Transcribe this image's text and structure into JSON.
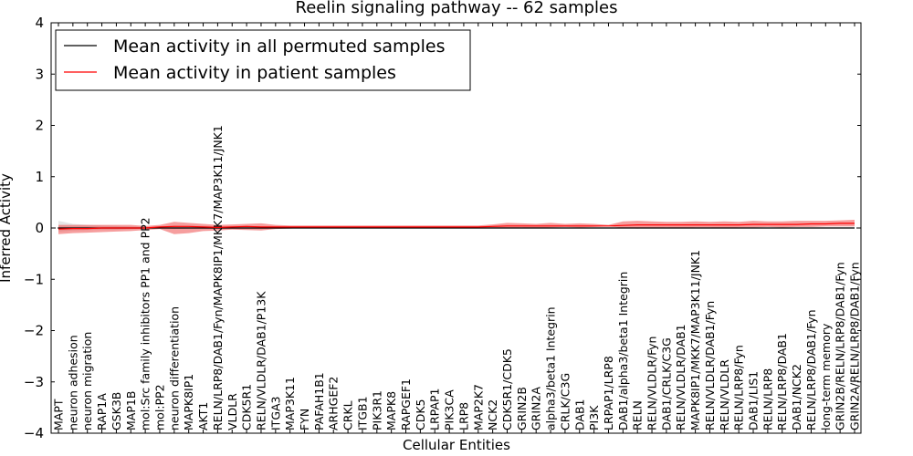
{
  "chart_data": {
    "type": "line",
    "title": "Reelin signaling pathway -- 62 samples",
    "xlabel": "Cellular Entities",
    "ylabel": "Inferred Activity",
    "ylim": [
      -4,
      4
    ],
    "yticks": [
      -4,
      -3,
      -2,
      -1,
      0,
      1,
      2,
      3,
      4
    ],
    "ytick_labels": [
      "−4",
      "−3",
      "−2",
      "−1",
      "0",
      "1",
      "2",
      "3",
      "4"
    ],
    "legend_position": "top-left",
    "zero_line": true,
    "categories": [
      "MAPT",
      "neuron adhesion",
      "neuron migration",
      "RAP1A",
      "GSK3B",
      "MAP1B",
      "mol:Src family inhibitors PP1 and PP2",
      "mol:PP2",
      "neuron differentiation",
      "MAPK8IP1",
      "AKT1",
      "RELN/LRP8/DAB1/Fyn/MAPK8IP1/MKK7/MAP3K11/JNK1",
      "VLDLR",
      "CDK5R1",
      "RELN/VLDLR/DAB1/P13K",
      "ITGA3",
      "MAP3K11",
      "FYN",
      "PAFAH1B1",
      "ARHGEF2",
      "CRKL",
      "ITGB1",
      "PIK3R1",
      "MAPK8",
      "RAPGEF1",
      "CDK5",
      "LRPAP1",
      "PIK3CA",
      "LRP8",
      "MAP2K7",
      "NCK2",
      "CDK5R1/CDK5",
      "GRIN2B",
      "GRIN2A",
      "alpha3/beta1 Integrin",
      "CRLK/C3G",
      "DAB1",
      "PI3K",
      "LRPAP1/LRP8",
      "DAB1/alpha3/beta1 Integrin",
      "RELN",
      "RELN/VLDLR/Fyn",
      "DAB1/CRLK/C3G",
      "RELN/VLDLR/DAB1",
      "MAPK8IP1/MKK7/MAP3K11/JNK1",
      "RELN/VLDLR/DAB1/Fyn",
      "RELN/VLDLR",
      "RELN/LRP8/Fyn",
      "DAB1/LIS1",
      "RELN/LRP8",
      "RELN/LRP8/DAB1",
      "DAB1/NCK2",
      "RELN/LRP8/DAB1/Fyn",
      "long-term memory",
      "GRIN2B/RELN/LRP8/DAB1/Fyn",
      "GRIN2A/RELN/LRP8/DAB1/Fyn"
    ],
    "series": [
      {
        "name": "Mean activity in all permuted samples",
        "color": "#000000",
        "values": [
          0.0,
          0.0,
          0.0,
          0.0,
          0.0,
          0.0,
          0.0,
          0.0,
          0.0,
          0.0,
          0.0,
          0.0,
          0.0,
          0.0,
          0.0,
          0.0,
          0.0,
          0.0,
          0.0,
          0.0,
          0.0,
          0.0,
          0.0,
          0.0,
          0.0,
          0.0,
          0.0,
          0.0,
          0.0,
          0.0,
          0.0,
          0.0,
          0.0,
          0.0,
          0.0,
          0.0,
          0.0,
          0.0,
          0.0,
          0.0,
          0.0,
          0.0,
          0.0,
          0.0,
          0.0,
          0.0,
          0.0,
          0.0,
          0.0,
          0.0,
          0.0,
          0.0,
          0.0,
          0.0,
          0.0,
          0.0
        ],
        "band_low": [
          -0.07,
          -0.05,
          -0.04,
          -0.03,
          -0.03,
          -0.02,
          -0.01,
          0.0,
          -0.02,
          -0.01,
          -0.01,
          -0.02,
          -0.02,
          -0.02,
          -0.02,
          -0.01,
          -0.01,
          -0.01,
          -0.01,
          -0.01,
          -0.01,
          -0.01,
          -0.01,
          -0.01,
          -0.01,
          -0.01,
          -0.01,
          -0.01,
          -0.01,
          -0.01,
          -0.01,
          -0.01,
          -0.01,
          -0.01,
          -0.01,
          -0.01,
          -0.01,
          -0.01,
          -0.01,
          -0.01,
          -0.01,
          -0.01,
          -0.01,
          -0.01,
          -0.01,
          -0.01,
          -0.01,
          -0.01,
          -0.01,
          -0.01,
          -0.01,
          -0.01,
          -0.01,
          -0.01,
          -0.01,
          -0.01
        ],
        "band_high": [
          0.14,
          0.08,
          0.06,
          0.05,
          0.04,
          0.03,
          0.02,
          0.02,
          0.05,
          0.04,
          0.04,
          0.03,
          0.03,
          0.03,
          0.03,
          0.03,
          0.02,
          0.02,
          0.02,
          0.02,
          0.02,
          0.02,
          0.02,
          0.02,
          0.02,
          0.02,
          0.02,
          0.02,
          0.02,
          0.02,
          0.02,
          0.02,
          0.02,
          0.02,
          0.02,
          0.02,
          0.02,
          0.02,
          0.02,
          0.02,
          0.02,
          0.02,
          0.02,
          0.02,
          0.02,
          0.02,
          0.02,
          0.02,
          0.02,
          0.02,
          0.02,
          0.02,
          0.02,
          0.02,
          0.02,
          0.02
        ]
      },
      {
        "name": "Mean activity in patient samples",
        "color": "#ff0000",
        "values": [
          -0.02,
          -0.01,
          -0.01,
          0.0,
          0.0,
          0.0,
          0.0,
          0.02,
          0.03,
          0.03,
          0.02,
          0.01,
          0.02,
          0.03,
          0.02,
          0.02,
          0.02,
          0.02,
          0.02,
          0.02,
          0.02,
          0.02,
          0.02,
          0.02,
          0.02,
          0.02,
          0.02,
          0.02,
          0.02,
          0.02,
          0.03,
          0.04,
          0.04,
          0.04,
          0.04,
          0.04,
          0.04,
          0.04,
          0.04,
          0.05,
          0.06,
          0.06,
          0.06,
          0.06,
          0.06,
          0.06,
          0.06,
          0.06,
          0.07,
          0.07,
          0.07,
          0.07,
          0.08,
          0.08,
          0.09,
          0.09
        ],
        "band_low": [
          -0.12,
          -0.1,
          -0.09,
          -0.08,
          -0.07,
          -0.06,
          -0.04,
          -0.02,
          -0.12,
          -0.1,
          -0.06,
          -0.05,
          -0.03,
          -0.04,
          -0.05,
          -0.02,
          -0.01,
          0.0,
          0.0,
          0.0,
          0.0,
          0.0,
          0.0,
          0.0,
          0.0,
          0.0,
          0.0,
          0.0,
          0.0,
          0.0,
          0.0,
          0.0,
          0.01,
          0.0,
          0.01,
          0.02,
          0.01,
          0.02,
          0.03,
          0.0,
          -0.01,
          0.0,
          0.01,
          0.0,
          0.01,
          0.01,
          0.0,
          0.01,
          0.01,
          0.02,
          0.01,
          0.02,
          0.02,
          0.03,
          0.03,
          0.03
        ],
        "band_high": [
          0.06,
          0.06,
          0.06,
          0.06,
          0.06,
          0.06,
          0.04,
          0.06,
          0.12,
          0.1,
          0.08,
          0.06,
          0.07,
          0.08,
          0.09,
          0.06,
          0.05,
          0.05,
          0.05,
          0.05,
          0.05,
          0.05,
          0.05,
          0.05,
          0.05,
          0.05,
          0.05,
          0.05,
          0.05,
          0.05,
          0.07,
          0.1,
          0.09,
          0.08,
          0.1,
          0.08,
          0.09,
          0.08,
          0.06,
          0.13,
          0.14,
          0.13,
          0.12,
          0.12,
          0.13,
          0.12,
          0.13,
          0.12,
          0.14,
          0.13,
          0.13,
          0.14,
          0.14,
          0.14,
          0.15,
          0.16
        ]
      }
    ]
  }
}
